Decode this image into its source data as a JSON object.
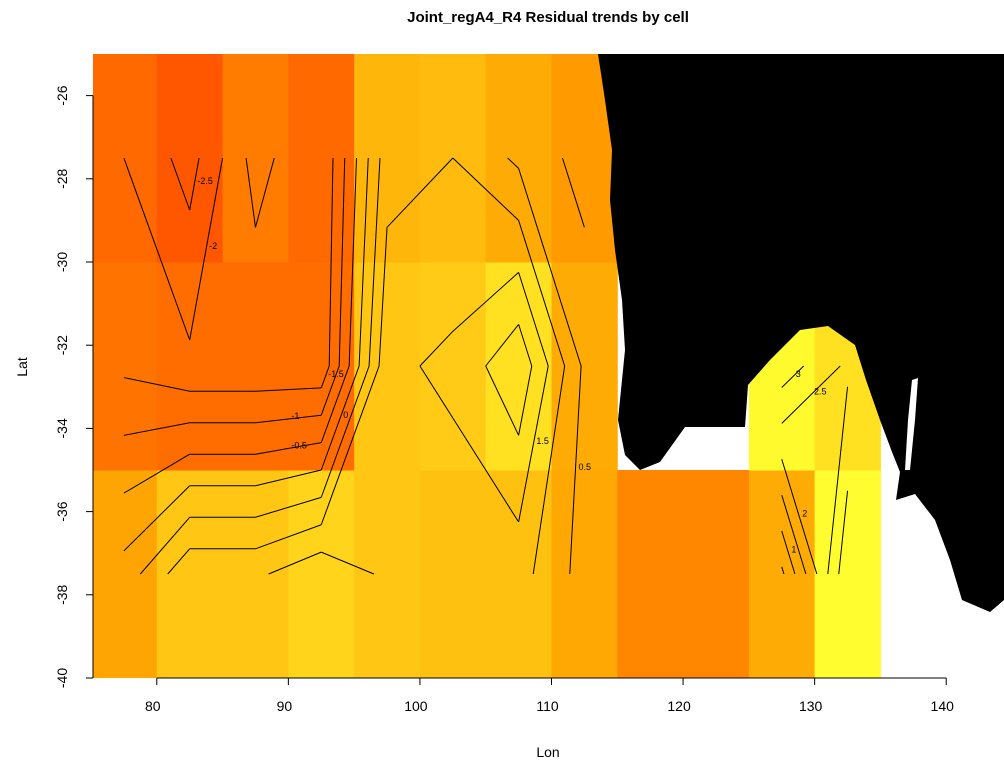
{
  "chart_data": {
    "type": "heatmap",
    "title": "Joint_regA4_R4 Residual trends by cell",
    "x_label": "Lon",
    "y_label": "Lat",
    "lon": [
      77.5,
      82.5,
      87.5,
      92.5,
      97.5,
      102.5,
      107.5,
      112.5,
      117.5,
      122.5,
      127.5,
      132.5
    ],
    "lat": [
      -37.5,
      -32.5,
      -27.5
    ],
    "z": [
      [
        0.2,
        1.4,
        1.4,
        1.9,
        1.4,
        1.2,
        1.2,
        0.3,
        -0.9,
        -0.9,
        0.4,
        3.4
      ],
      [
        -1.6,
        -1.9,
        -1.9,
        -1.9,
        1.4,
        1.6,
        2.4,
        0.4,
        null,
        null,
        3.3,
        2.4
      ],
      [
        -2.0,
        -2.7,
        -1.3,
        -2.0,
        0.8,
        1.0,
        0.4,
        -0.2,
        null,
        null,
        null,
        null
      ]
    ],
    "zlim": [
      -3.5,
      3.5
    ],
    "palette": [
      "#ff4000",
      "#ffa000",
      "#ffff30"
    ],
    "contour_levels": [
      -2.5,
      -2,
      -1.5,
      -1,
      -0.5,
      0,
      0.5,
      1,
      1.5,
      2,
      2.5,
      3
    ],
    "xlim": [
      75,
      145
    ],
    "ylim": [
      -40,
      -25
    ],
    "xticks": [
      80,
      90,
      100,
      110,
      120,
      130,
      140
    ],
    "yticks": [
      -40,
      -38,
      -36,
      -34,
      -32,
      -30,
      -28,
      -26
    ]
  }
}
